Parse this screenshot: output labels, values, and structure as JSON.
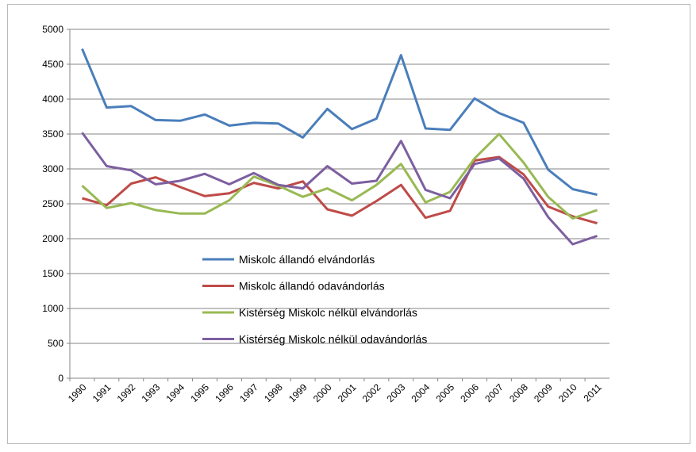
{
  "chart_data": {
    "type": "line",
    "categories": [
      "1990",
      "1991",
      "1992",
      "1993",
      "1994",
      "1995",
      "1996",
      "1997",
      "1998",
      "1999",
      "2000",
      "2001",
      "2002",
      "2003",
      "2004",
      "2005",
      "2006",
      "2007",
      "2008",
      "2009",
      "2010",
      "2011"
    ],
    "series": [
      {
        "name": "Miskolc állandó elvándorlás",
        "color": "#4a7ebb",
        "values": [
          4720,
          3880,
          3900,
          3700,
          3690,
          3780,
          3620,
          3660,
          3650,
          3450,
          3860,
          3570,
          3720,
          4630,
          3580,
          3560,
          4010,
          3800,
          3660,
          2990,
          2710,
          2630
        ]
      },
      {
        "name": "Miskolc állandó odavándorlás",
        "color": "#be4b48",
        "values": [
          2580,
          2480,
          2790,
          2880,
          2740,
          2610,
          2650,
          2800,
          2720,
          2820,
          2420,
          2330,
          2540,
          2770,
          2300,
          2400,
          3120,
          3170,
          2920,
          2460,
          2320,
          2220
        ]
      },
      {
        "name": "Kistérség Miskolc nélkül elvándorlás",
        "color": "#98b954",
        "values": [
          2760,
          2440,
          2510,
          2410,
          2360,
          2360,
          2550,
          2890,
          2760,
          2600,
          2720,
          2550,
          2770,
          3070,
          2520,
          2670,
          3150,
          3500,
          3090,
          2600,
          2290,
          2410
        ]
      },
      {
        "name": "Kistérség Miskolc nélkül odavándorlás",
        "color": "#7d5fa0",
        "values": [
          3520,
          3040,
          2980,
          2780,
          2830,
          2930,
          2780,
          2940,
          2770,
          2720,
          3040,
          2790,
          2830,
          3400,
          2700,
          2580,
          3070,
          3150,
          2860,
          2310,
          1920,
          2040
        ]
      }
    ],
    "ylim": [
      0,
      5000
    ],
    "yticks": [
      0,
      500,
      1000,
      1500,
      2000,
      2500,
      3000,
      3500,
      4000,
      4500,
      5000
    ],
    "grid": true
  }
}
